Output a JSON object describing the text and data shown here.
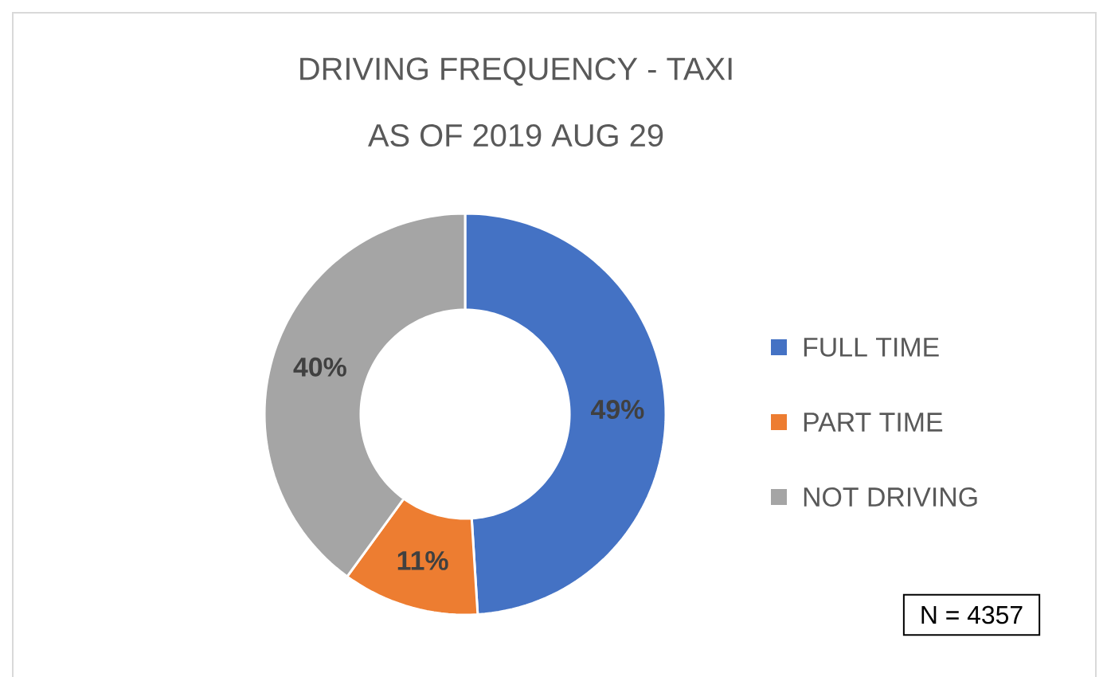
{
  "chart_data": {
    "type": "donut",
    "title": "DRIVING FREQUENCY - TAXI",
    "subtitle": "AS OF 2019 AUG 29",
    "categories": [
      "FULL TIME",
      "PART TIME",
      "NOT DRIVING"
    ],
    "values": [
      49,
      11,
      40
    ],
    "colors": [
      "#4472c4",
      "#ed7d31",
      "#a5a5a5"
    ],
    "value_labels": [
      "49%",
      "11%",
      "40%"
    ],
    "legend": "right",
    "annotations": [
      "N = 4357"
    ]
  }
}
